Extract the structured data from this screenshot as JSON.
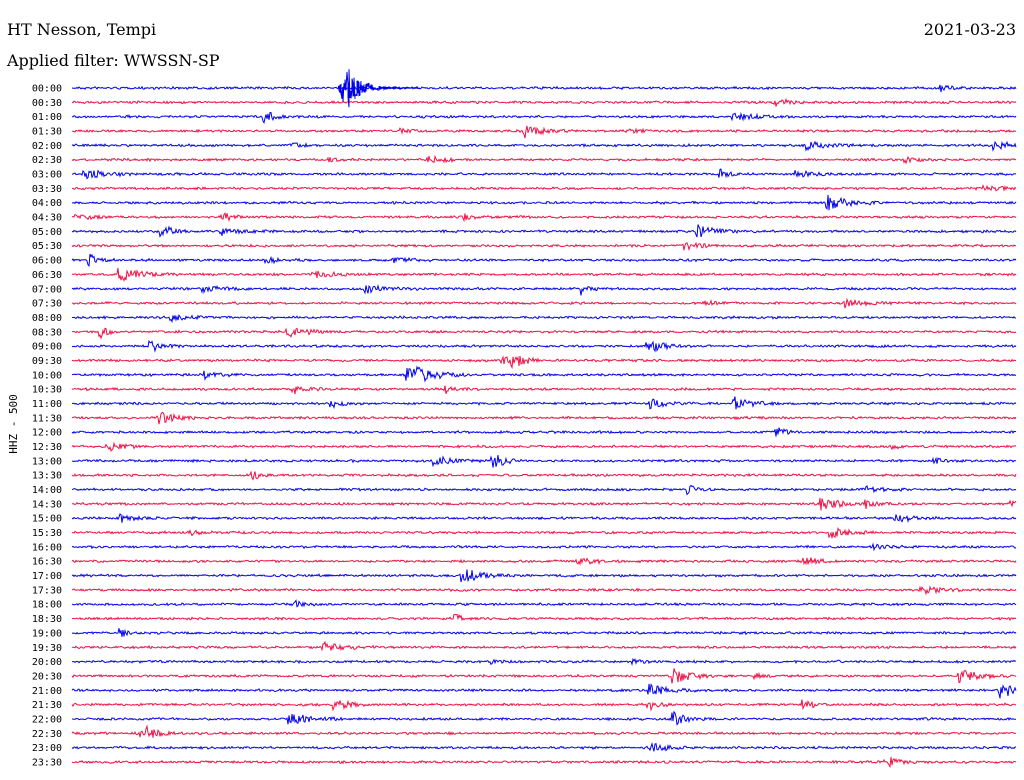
{
  "header": {
    "station": "HT Nesson, Tempi",
    "date": "2021-03-23",
    "filter_label": "Applied filter: WWSSN-SP"
  },
  "chart_data": {
    "type": "line",
    "title": "HT Nesson, Tempi",
    "ylabel": "HHZ - 500",
    "rows": [
      "00:00",
      "00:30",
      "01:00",
      "01:30",
      "02:00",
      "02:30",
      "03:00",
      "03:30",
      "04:00",
      "04:30",
      "05:00",
      "05:30",
      "06:00",
      "06:30",
      "07:00",
      "07:30",
      "08:00",
      "08:30",
      "09:00",
      "09:30",
      "10:00",
      "10:30",
      "11:00",
      "11:30",
      "12:00",
      "12:30",
      "13:00",
      "13:30",
      "14:00",
      "14:30",
      "15:00",
      "15:30",
      "16:00",
      "16:30",
      "17:00",
      "17:30",
      "18:00",
      "18:30",
      "19:00",
      "19:30",
      "20:00",
      "20:30",
      "21:00",
      "21:30",
      "22:00",
      "22:30",
      "23:00",
      "23:30"
    ],
    "colors": [
      "#0000ee",
      "#ee1144"
    ],
    "x_range_minutes": [
      0,
      30
    ],
    "grid": false,
    "legend": "none"
  }
}
